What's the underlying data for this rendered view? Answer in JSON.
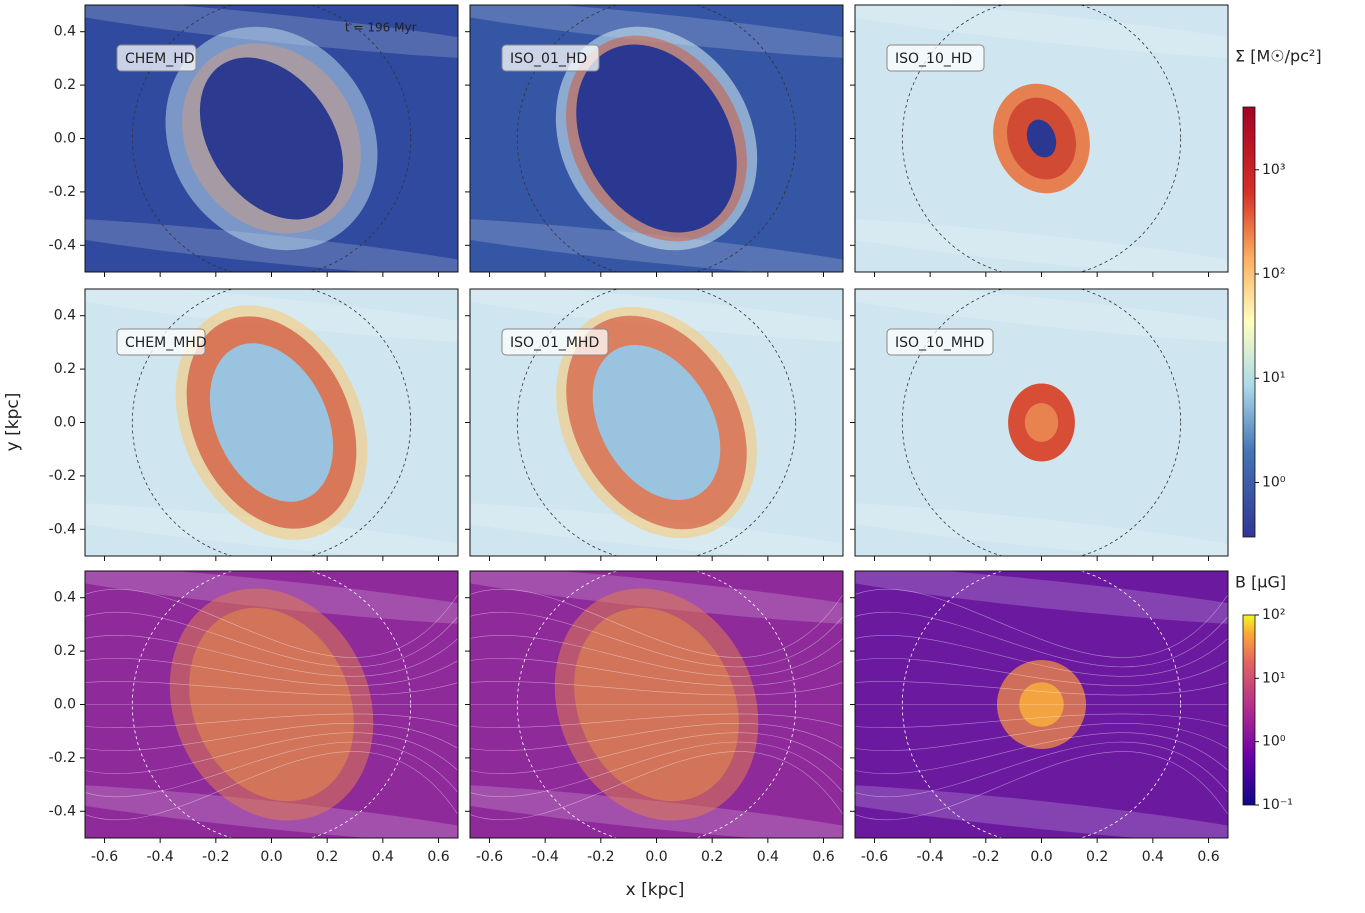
{
  "figure": {
    "xlabel": "x [kpc]",
    "ylabel": "y [kpc]",
    "xlim": [
      -0.67,
      0.67
    ],
    "ylim": [
      -0.5,
      0.5
    ],
    "xticks": [
      -0.6,
      -0.4,
      -0.2,
      {
        "value": 0,
        "label": "0.0"
      },
      0.2,
      0.4,
      0.6
    ],
    "yticks": [
      -0.4,
      -0.2,
      {
        "value": 0,
        "label": "0.0"
      },
      0.2,
      0.4
    ],
    "annotation": "t = 196 Myr",
    "panel_labels": [
      "CHEM_HD",
      "ISO_01_HD",
      "ISO_10_HD",
      "CHEM_MHD",
      "ISO_01_MHD",
      "ISO_10_MHD"
    ],
    "colorbars": [
      {
        "label": "Σ [M☉/pc²]",
        "log": true,
        "lim": [
          0.3,
          4000
        ],
        "ticks": [
          {
            "value": 1,
            "label": "10⁰"
          },
          {
            "value": 10,
            "label": "10¹"
          },
          {
            "value": 100,
            "label": "10²"
          },
          {
            "value": 1000,
            "label": "10³"
          }
        ]
      },
      {
        "label": "B [μG]",
        "log": true,
        "lim": [
          0.1,
          100
        ],
        "ticks": [
          {
            "value": 0.1,
            "label": "10⁻¹"
          },
          {
            "value": 1,
            "label": "10⁰"
          },
          {
            "value": 10,
            "label": "10¹"
          },
          {
            "value": 100,
            "label": "10²"
          }
        ]
      }
    ]
  }
}
